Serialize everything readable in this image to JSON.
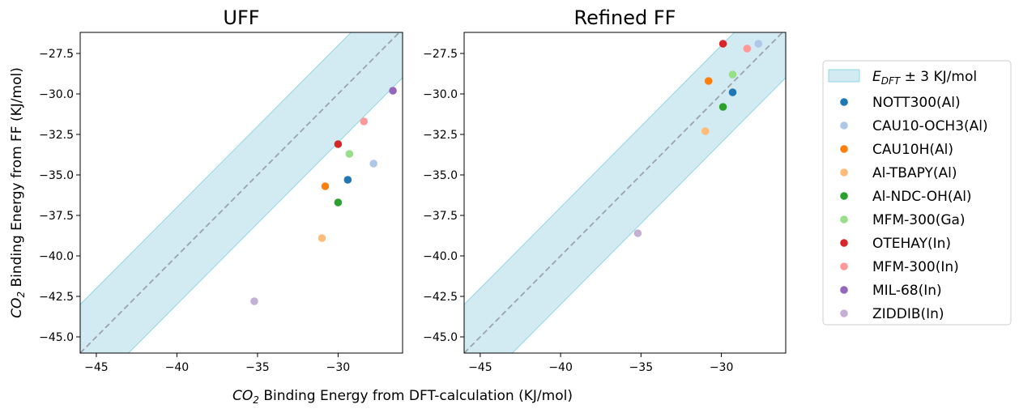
{
  "chart_data": {
    "type": "scatter",
    "x_axis_label": "CO₂ Binding Energy from DFT-calculation (KJ/mol)",
    "y_axis_label": "CO₂ Binding Energy from FF (KJ/mol)",
    "band": {
      "label": "E_DFT ± 3 KJ/mol",
      "half_width": 3,
      "color": "#add8e6"
    },
    "xlim": [
      -46,
      -26
    ],
    "ylim": [
      -46,
      -26.2
    ],
    "xticks": [
      -45,
      -40,
      -35,
      -30
    ],
    "yticks": [
      -45.0,
      -42.5,
      -40.0,
      -37.5,
      -35.0,
      -32.5,
      -30.0,
      -27.5
    ],
    "series": [
      {
        "name": "NOTT300(Al)",
        "color": "#1f77b4",
        "uff": [
          -29.4,
          -35.3
        ],
        "refined": [
          -29.3,
          -29.9
        ]
      },
      {
        "name": "CAU10-OCH3(Al)",
        "color": "#aec7e8",
        "uff": [
          -27.8,
          -34.3
        ],
        "refined": [
          -27.7,
          -26.9
        ]
      },
      {
        "name": "CAU10H(Al)",
        "color": "#ff7f0e",
        "uff": [
          -30.8,
          -35.7
        ],
        "refined": [
          -30.8,
          -29.2
        ]
      },
      {
        "name": "Al-TBAPY(Al)",
        "color": "#ffbb78",
        "uff": [
          -31.0,
          -38.9
        ],
        "refined": [
          -31.0,
          -32.3
        ]
      },
      {
        "name": "Al-NDC-OH(Al)",
        "color": "#2ca02c",
        "uff": [
          -30.0,
          -36.7
        ],
        "refined": [
          -29.9,
          -30.8
        ]
      },
      {
        "name": "MFM-300(Ga)",
        "color": "#98df8a",
        "uff": [
          -29.3,
          -33.7
        ],
        "refined": [
          -29.3,
          -28.8
        ]
      },
      {
        "name": "OTEHAY(In)",
        "color": "#d62728",
        "uff": [
          -30.0,
          -33.1
        ],
        "refined": [
          -29.9,
          -26.9
        ]
      },
      {
        "name": "MFM-300(In)",
        "color": "#ff9896",
        "uff": [
          -28.4,
          -31.7
        ],
        "refined": [
          -28.4,
          -27.2
        ]
      },
      {
        "name": "MIL-68(In)",
        "color": "#9467bd",
        "uff": [
          -26.6,
          -29.8
        ],
        "refined": null
      },
      {
        "name": "ZIDDIB(In)",
        "color": "#c5b0d5",
        "uff": [
          -35.2,
          -42.8
        ],
        "refined": [
          -35.2,
          -38.6
        ]
      }
    ],
    "panels": [
      {
        "title": "UFF",
        "key": "uff"
      },
      {
        "title": "Refined FF",
        "key": "refined"
      }
    ],
    "diagonal": {
      "style": "dashed",
      "color": "#9aa3ad"
    },
    "legend_position": "right"
  }
}
